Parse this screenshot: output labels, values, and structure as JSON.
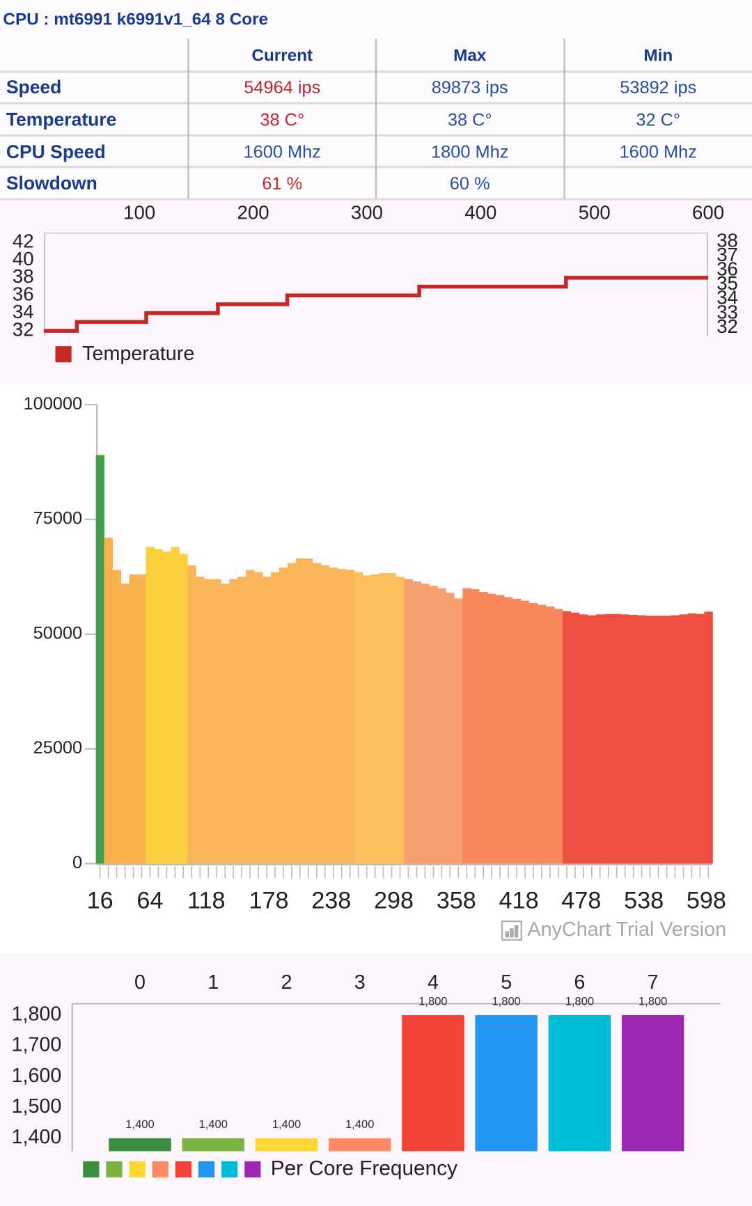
{
  "header": {
    "title": "CPU : mt6991 k6991v1_64 8 Core"
  },
  "table": {
    "header": [
      "Current",
      "Max",
      "Min"
    ],
    "rows": [
      [
        "Speed",
        "54964 ips",
        "89873 ips",
        "53892 ips"
      ],
      [
        "Temperature",
        "38 C°",
        "38 C°",
        "32 C°"
      ],
      [
        "CPU Speed",
        "1600 Mhz",
        "1800 Mhz",
        "1600 Mhz"
      ],
      [
        "Slowdown",
        "61 %",
        "60 %"
      ]
    ]
  },
  "chart_data": [
    {
      "type": "line",
      "step": "after",
      "x": [
        16,
        45,
        106,
        169,
        230,
        346,
        475,
        600
      ],
      "series": [
        {
          "name": "Temperature",
          "color": "#c62828",
          "values": [
            32,
            33,
            34,
            35,
            36,
            37,
            38,
            38
          ]
        }
      ],
      "xlim": [
        16,
        600
      ],
      "xticks": [
        100,
        200,
        300,
        400,
        500,
        600
      ],
      "ylim": [
        32,
        42
      ],
      "yticks": [
        32,
        34,
        36,
        38,
        40,
        42
      ],
      "y2lim": [
        32,
        38
      ],
      "y2ticks": [
        32,
        33,
        34,
        35,
        36,
        37,
        38
      ]
    },
    {
      "type": "bar",
      "x": [
        16,
        24,
        32,
        40,
        48,
        56,
        64,
        72,
        80,
        88,
        96,
        104,
        112,
        120,
        128,
        136,
        144,
        152,
        160,
        168,
        176,
        184,
        192,
        200,
        208,
        216,
        224,
        232,
        240,
        248,
        256,
        264,
        272,
        280,
        288,
        296,
        304,
        312,
        320,
        328,
        336,
        344,
        352,
        360,
        368,
        376,
        384,
        392,
        400,
        408,
        416,
        424,
        432,
        440,
        448,
        456,
        464,
        472,
        480,
        488,
        496,
        504,
        512,
        520,
        528,
        536,
        544,
        552,
        560,
        568,
        576,
        584,
        592,
        600
      ],
      "values": [
        89000,
        71000,
        64000,
        61000,
        63000,
        63000,
        69000,
        68500,
        68000,
        69000,
        67500,
        65000,
        62500,
        62000,
        62000,
        61000,
        62000,
        62500,
        64000,
        63500,
        62500,
        63500,
        64500,
        65500,
        66500,
        66500,
        65500,
        65000,
        64500,
        64200,
        64000,
        63500,
        62800,
        63000,
        63300,
        63300,
        62500,
        62000,
        61500,
        61000,
        60500,
        60000,
        59000,
        57800,
        60000,
        59800,
        59200,
        58800,
        58500,
        58000,
        57700,
        57300,
        56800,
        56400,
        56000,
        55500,
        55000,
        54700,
        54300,
        54100,
        54300,
        54400,
        54400,
        54300,
        54200,
        54100,
        54000,
        54000,
        54000,
        54100,
        54300,
        54500,
        54400,
        54900
      ],
      "colors": [
        "#43a047",
        "#f9b24e",
        "#f9b24e",
        "#f9b24e",
        "#f9b24e",
        "#f9b24e",
        "#fcd03c",
        "#fcd03c",
        "#fcd03c",
        "#fcd03c",
        "#fcd03c",
        "#fbb55a",
        "#fbb55a",
        "#fbb55a",
        "#fbb55a",
        "#fbb55a",
        "#fbb55a",
        "#fbb55a",
        "#fbb55a",
        "#fbb55a",
        "#fbb55a",
        "#fbb55a",
        "#fbb55a",
        "#fbb55a",
        "#fbb55a",
        "#fbb55a",
        "#fbb55a",
        "#fbb55a",
        "#fbb55a",
        "#fbb55a",
        "#fbb55a",
        "#fcbf5c",
        "#fcbf5c",
        "#fcbf5c",
        "#fcbf5c",
        "#fcbf5c",
        "#fcbf5c",
        "#f9a070",
        "#f9a070",
        "#f9a070",
        "#f9a070",
        "#f9a070",
        "#f9a070",
        "#f9a070",
        "#f8885a",
        "#f8885a",
        "#f8885a",
        "#f8885a",
        "#f8885a",
        "#f8885a",
        "#f8885a",
        "#f8885a",
        "#f8885a",
        "#f8885a",
        "#f8885a",
        "#f8885a",
        "#ef4f41",
        "#ef4f41",
        "#ef4f41",
        "#ef4f41",
        "#ef4f41",
        "#ef4f41",
        "#ef4f41",
        "#ef4f41",
        "#ef4f41",
        "#ef4f41",
        "#ef4f41",
        "#ef4f41",
        "#ef4f41",
        "#ef4f41",
        "#ef4f41",
        "#ef4f41",
        "#ef4f41",
        "#ef4f41"
      ],
      "xlim": [
        13,
        602
      ],
      "xticks": [
        16,
        64,
        118,
        178,
        238,
        298,
        358,
        418,
        478,
        538,
        598
      ],
      "ylim": [
        0,
        100000
      ],
      "yticks": [
        0,
        25000,
        50000,
        75000,
        100000
      ],
      "watermark": "AnyChart Trial Version"
    },
    {
      "type": "bar",
      "categories": [
        "0",
        "1",
        "2",
        "3",
        "4",
        "5",
        "6",
        "7"
      ],
      "values": [
        1400,
        1400,
        1400,
        1400,
        1800,
        1800,
        1800,
        1800
      ],
      "value_labels": [
        "1,400",
        "1,400",
        "1,400",
        "1,400",
        "1,800",
        "1,800",
        "1,800",
        "1,800"
      ],
      "colors": [
        "#388e3c",
        "#7cb342",
        "#fdd835",
        "#ff8a65",
        "#f44336",
        "#2196f3",
        "#00bcd4",
        "#9c27b0"
      ],
      "ylim": [
        1357.5,
        1837.5
      ],
      "yticks": [
        {
          "value": 1400,
          "label": "1,400"
        },
        {
          "value": 1500,
          "label": "1,500"
        },
        {
          "value": 1600,
          "label": "1,600"
        },
        {
          "value": 1700,
          "label": "1,700"
        },
        {
          "value": 1800,
          "label": "1,800"
        }
      ],
      "legend": "Per Core Frequency"
    }
  ]
}
